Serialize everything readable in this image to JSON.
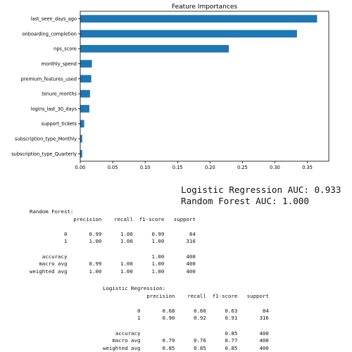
{
  "chart_data": {
    "type": "bar",
    "orientation": "horizontal",
    "title": "Feature Importances",
    "xlabel": "",
    "ylabel": "",
    "categories": [
      "last_seen_days_ago",
      "onboarding_completion",
      "nps_score",
      "monthly_spend",
      "premium_features_used",
      "tenure_months",
      "logins_last_30_days",
      "support_tickets",
      "subscription_type_Monthly",
      "subscription_type_Quarterly"
    ],
    "values": [
      0.365,
      0.334,
      0.229,
      0.018,
      0.017,
      0.015,
      0.014,
      0.006,
      0.003,
      0.003
    ],
    "xlim": [
      0,
      0.383
    ],
    "xticks": [
      "0.00",
      "0.05",
      "0.10",
      "0.15",
      "0.20",
      "0.25",
      "0.30",
      "0.35"
    ],
    "bar_color": "#1f77b4",
    "grid": false
  },
  "auc": {
    "logistic": "Logistic Regression AUC: 0.933",
    "random_forest": "Random Forest AUC: 1.000"
  },
  "reports": {
    "random_forest": "Random Forest:\n              precision    recall  f1-score   support\n\n           0       0.99      1.00      0.99        84\n           1       1.00      1.00      1.00       316\n\n    accuracy                           1.00       400\n   macro avg       0.99      1.00      1.00       400\nweighted avg       1.00      1.00      1.00       400",
    "logistic": "Logistic Regression:\n              precision    recall  f1-score   support\n\n           0       0.68      0.60      0.63        84\n           1       0.90      0.92      0.91       316\n\n    accuracy                           0.85       400\n   macro avg       0.79      0.76      0.77       400\nweighted avg       0.85      0.85      0.85       400"
  }
}
